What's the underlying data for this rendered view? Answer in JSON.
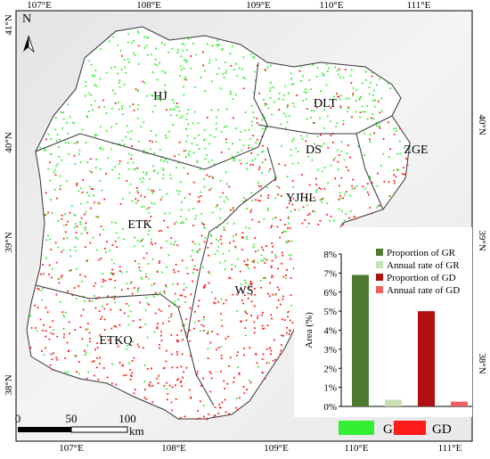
{
  "map": {
    "north": "N",
    "lon_labels_top": [
      "107°E",
      "108°E",
      "109°E",
      "110°E",
      "111°E"
    ],
    "lon_labels_bottom": [
      "107°E",
      "108°E",
      "109°E",
      "110°E",
      "111°E"
    ],
    "lat_labels_left": [
      "41°N",
      "40°N",
      "39°N",
      "38°N"
    ],
    "lat_labels_right": [
      "40°N",
      "39°N",
      "38°N"
    ],
    "regions": [
      "HJ",
      "DLT",
      "DS",
      "ZGE",
      "YJHL",
      "ETK",
      "WS",
      "ETKQ"
    ],
    "scale_bar": {
      "labels": [
        "0",
        "50",
        "100"
      ],
      "unit": "km"
    },
    "legend": [
      {
        "name": "GR",
        "color": "#33ee33"
      },
      {
        "name": "GD",
        "color": "#ff1a1a"
      }
    ]
  },
  "chart_data": {
    "type": "bar",
    "ylabel": "Area (%)",
    "ylim": [
      0,
      8
    ],
    "yticks": [
      {
        "value": 0,
        "label": "0%"
      },
      {
        "value": 1,
        "label": "1%"
      },
      {
        "value": 2,
        "label": "2%"
      },
      {
        "value": 3,
        "label": "3%"
      },
      {
        "value": 4,
        "label": "4%"
      },
      {
        "value": 5,
        "label": "5%"
      },
      {
        "value": 6,
        "label": "6%"
      },
      {
        "value": 7,
        "label": "7%"
      },
      {
        "value": 8,
        "label": "8%"
      }
    ],
    "series": [
      {
        "name": "Proportion of GR",
        "color": "#4d7a32",
        "values": [
          6.9
        ]
      },
      {
        "name": "Annual rate of GR",
        "color": "#c6e0b4",
        "values": [
          0.35
        ]
      },
      {
        "name": "Proportion of GD",
        "color": "#b01010",
        "values": [
          5.0
        ]
      },
      {
        "name": "Annual rate of GD",
        "color": "#f06060",
        "values": [
          0.25
        ]
      }
    ]
  }
}
